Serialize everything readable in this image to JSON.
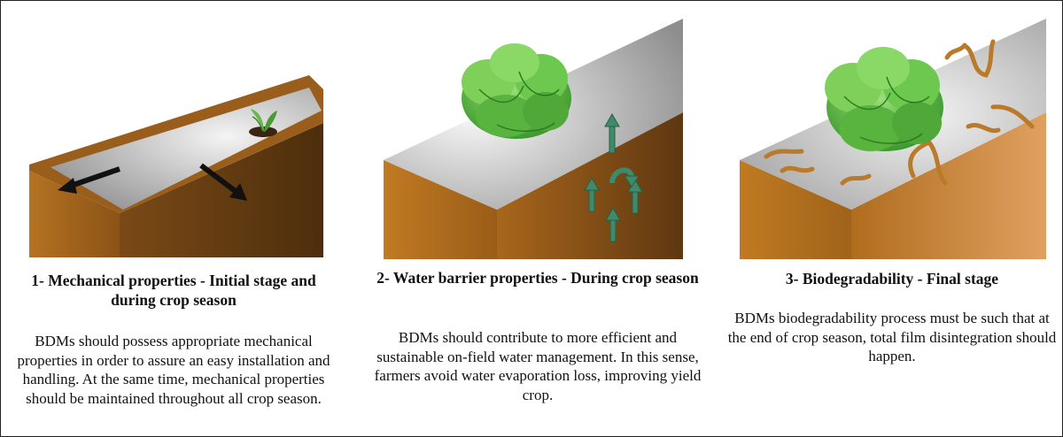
{
  "panels": [
    {
      "title": "1- Mechanical properties - Initial stage and during crop season",
      "description": "BDMs should possess appropriate mechanical properties in order to assure an easy installation and handling. At the same time, mechanical properties should be maintained throughout all crop season."
    },
    {
      "title": "2- Water barrier properties - During crop season",
      "description": "BDMs should contribute to more efficient and sustainable on-field water management. In this sense, farmers avoid water evaporation loss, improving yield crop."
    },
    {
      "title": "3- Biodegradability - Final stage",
      "description": "BDMs biodegradability process must be such that at the end of crop season, total film disintegration should happen."
    }
  ],
  "colors": {
    "soil_front": "#a8661c",
    "soil_side": "#6b3f12",
    "film": "#c4c4c4",
    "arrow_black": "#111111",
    "arrow_green": "#3f8a6a",
    "lettuce": "#5fc24a",
    "roots": "#b97a2a"
  }
}
